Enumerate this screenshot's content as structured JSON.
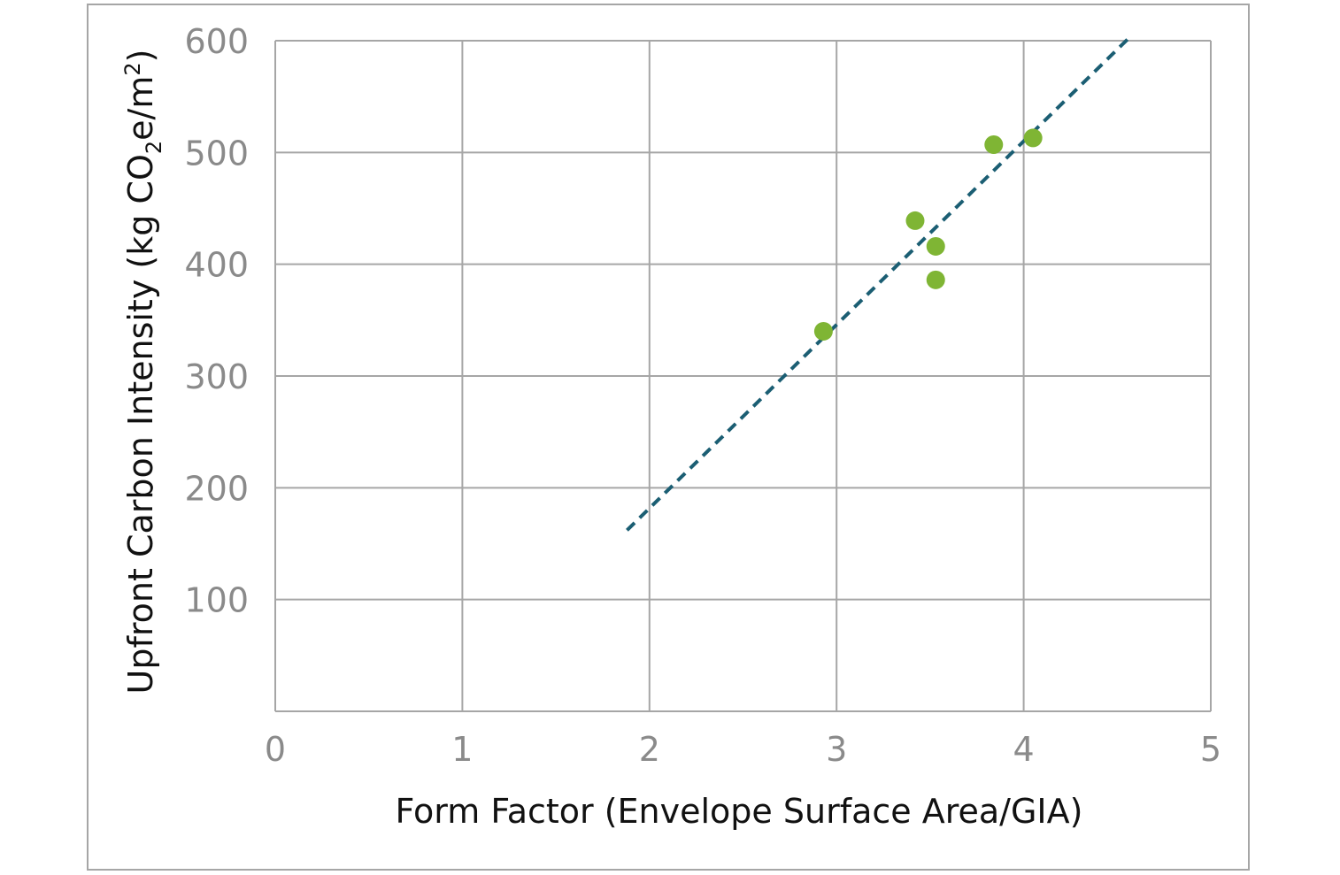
{
  "chart_data": {
    "type": "scatter",
    "xlabel": "Form Factor (Envelope Surface Area/GIA)",
    "ylabel": {
      "prefix": "Upfront Carbon Intensity (kg CO",
      "sub": "2",
      "mid": "e/m",
      "sup": "2",
      "suffix": ")"
    },
    "xlim": [
      0,
      5
    ],
    "ylim": [
      0,
      600
    ],
    "x_ticks": [
      "0",
      "1",
      "2",
      "3",
      "4",
      "5"
    ],
    "y_ticks": [
      "100",
      "200",
      "300",
      "400",
      "500",
      "600"
    ],
    "grid": true,
    "series": [
      {
        "points": [
          {
            "x": 2.93,
            "y": 340
          },
          {
            "x": 3.42,
            "y": 439
          },
          {
            "x": 3.53,
            "y": 416
          },
          {
            "x": 3.53,
            "y": 386
          },
          {
            "x": 3.84,
            "y": 507
          },
          {
            "x": 4.05,
            "y": 513
          }
        ],
        "color": "#7fb534"
      }
    ],
    "trendline": {
      "style": "dashed",
      "color": "#1b5e73",
      "from": {
        "x": 1.88,
        "y": 162
      },
      "to": {
        "x": 4.56,
        "y": 602
      }
    }
  }
}
